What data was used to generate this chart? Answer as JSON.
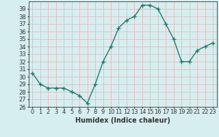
{
  "x": [
    0,
    1,
    2,
    3,
    4,
    5,
    6,
    7,
    8,
    9,
    10,
    11,
    12,
    13,
    14,
    15,
    16,
    17,
    18,
    19,
    20,
    21,
    22,
    23
  ],
  "y": [
    30.5,
    29.0,
    28.5,
    28.5,
    28.5,
    28.0,
    27.5,
    26.5,
    29.0,
    32.0,
    34.0,
    36.5,
    37.5,
    38.0,
    39.5,
    39.5,
    39.0,
    37.0,
    35.0,
    32.0,
    32.0,
    33.5,
    34.0,
    34.5
  ],
  "line_color": "#1a7a6e",
  "marker": "+",
  "marker_size": 4,
  "line_width": 1.0,
  "bg_color": "#d6eef0",
  "grid_color": "#e8b8b8",
  "title": "",
  "xlabel": "Humidex (Indice chaleur)",
  "ylabel": "",
  "xlim": [
    -0.5,
    23.5
  ],
  "ylim": [
    26,
    40
  ],
  "yticks": [
    26,
    27,
    28,
    29,
    30,
    31,
    32,
    33,
    34,
    35,
    36,
    37,
    38,
    39
  ],
  "xticks": [
    0,
    1,
    2,
    3,
    4,
    5,
    6,
    7,
    8,
    9,
    10,
    11,
    12,
    13,
    14,
    15,
    16,
    17,
    18,
    19,
    20,
    21,
    22,
    23
  ],
  "xlabel_fontsize": 7,
  "tick_fontsize": 6,
  "axis_color": "#333333",
  "marker_color": "#1a7a6e"
}
